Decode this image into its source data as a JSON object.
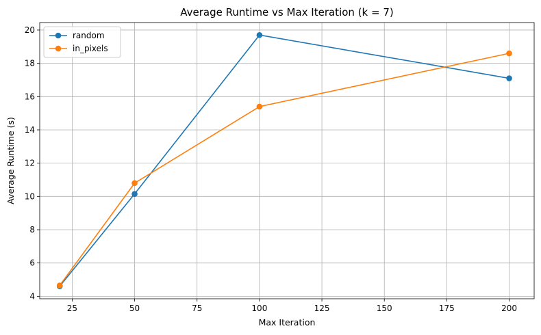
{
  "chart_data": {
    "type": "line",
    "title": "Average Runtime vs Max Iteration (k = 7)",
    "xlabel": "Max Iteration",
    "ylabel": "Average Runtime (s)",
    "xlim": [
      12,
      210
    ],
    "ylim": [
      3.85,
      20.45
    ],
    "xticks": [
      25,
      50,
      75,
      100,
      125,
      150,
      175,
      200
    ],
    "yticks": [
      4,
      6,
      8,
      10,
      12,
      14,
      16,
      18,
      20
    ],
    "grid": true,
    "legend_position": "top-left",
    "x": [
      20,
      50,
      100,
      200
    ],
    "series": [
      {
        "name": "random",
        "color": "#1f77b4",
        "marker": "circle",
        "values": [
          4.6,
          10.15,
          19.7,
          17.1
        ]
      },
      {
        "name": "in_pixels",
        "color": "#ff7f0e",
        "marker": "circle",
        "values": [
          4.65,
          10.8,
          15.4,
          18.6
        ]
      }
    ]
  }
}
